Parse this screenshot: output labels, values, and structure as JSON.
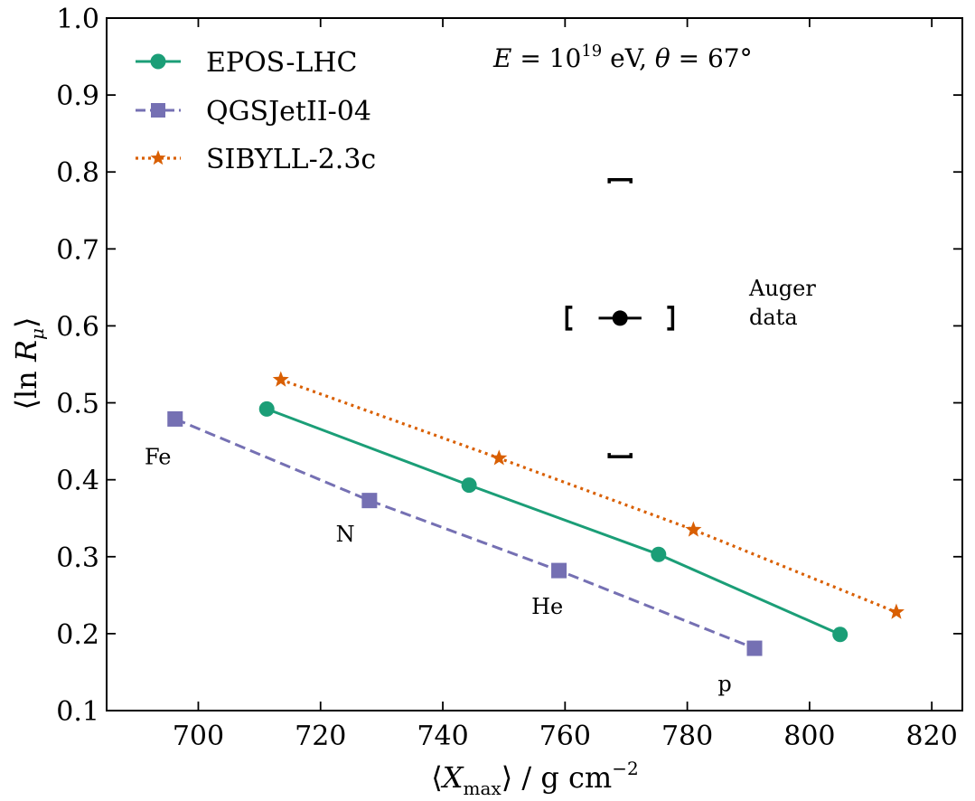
{
  "chart_data": {
    "type": "line",
    "title": "",
    "condition_label": "E = 10^19 eV, θ = 67°",
    "condition_parts": {
      "e_symbol": "E",
      "equals": " = ",
      "base": "10",
      "exponent": "19",
      "unit": " eV, ",
      "theta_symbol": "θ",
      "theta_value": " = 67°"
    },
    "xlabel": "⟨Xmax⟩ / g cm^-2",
    "xlabel_parts": {
      "open": "⟨",
      "var": "X",
      "sub": "max",
      "close": "⟩ / g cm",
      "sup": "−2"
    },
    "ylabel": "⟨ln Rμ⟩",
    "ylabel_parts": {
      "open": "⟨ln ",
      "var": "R",
      "sub": "μ",
      "close": "⟩"
    },
    "xlim": [
      685,
      825
    ],
    "ylim": [
      0.1,
      1.0
    ],
    "xticks": [
      700,
      720,
      740,
      760,
      780,
      800,
      820
    ],
    "xtick_labels": [
      "700",
      "720",
      "740",
      "760",
      "780",
      "800",
      "820"
    ],
    "yticks": [
      0.1,
      0.2,
      0.3,
      0.4,
      0.5,
      0.6,
      0.7,
      0.8,
      0.9,
      1.0
    ],
    "ytick_labels": [
      "0.1",
      "0.2",
      "0.3",
      "0.4",
      "0.5",
      "0.6",
      "0.7",
      "0.8",
      "0.9",
      "1.0"
    ],
    "grid": false,
    "legend_position": "top-left",
    "series": [
      {
        "name": "EPOS-LHC",
        "color": "#1b9e77",
        "linestyle": "solid",
        "marker": "circle",
        "x": [
          711.2,
          744.3,
          775.3,
          805.0
        ],
        "y": [
          0.492,
          0.393,
          0.303,
          0.199
        ]
      },
      {
        "name": "QGSJetII-04",
        "color": "#7570b3",
        "linestyle": "dashed",
        "marker": "square",
        "x": [
          696.2,
          728.0,
          759.0,
          791.0
        ],
        "y": [
          0.479,
          0.373,
          0.282,
          0.181
        ]
      },
      {
        "name": "SIBYLL-2.3c",
        "color": "#d95f02",
        "linestyle": "dotted",
        "marker": "star",
        "x": [
          713.5,
          749.2,
          781.0,
          814.2
        ],
        "y": [
          0.53,
          0.428,
          0.335,
          0.228
        ]
      }
    ],
    "data_point": {
      "name": "Auger data",
      "label_lines": [
        "Auger",
        "data"
      ],
      "x": 769.0,
      "y": 0.61,
      "x_stat_err": [
        765.5,
        772.5
      ],
      "x_sys_range": [
        760.3,
        777.6
      ],
      "y_sys_range": [
        0.43,
        0.79
      ],
      "color": "#000000"
    },
    "primary_labels": [
      {
        "text": "Fe",
        "x": 691.2,
        "y": 0.42
      },
      {
        "text": "N",
        "x": 722.5,
        "y": 0.32
      },
      {
        "text": "He",
        "x": 754.5,
        "y": 0.226
      },
      {
        "text": "p",
        "x": 785.0,
        "y": 0.125
      }
    ]
  }
}
